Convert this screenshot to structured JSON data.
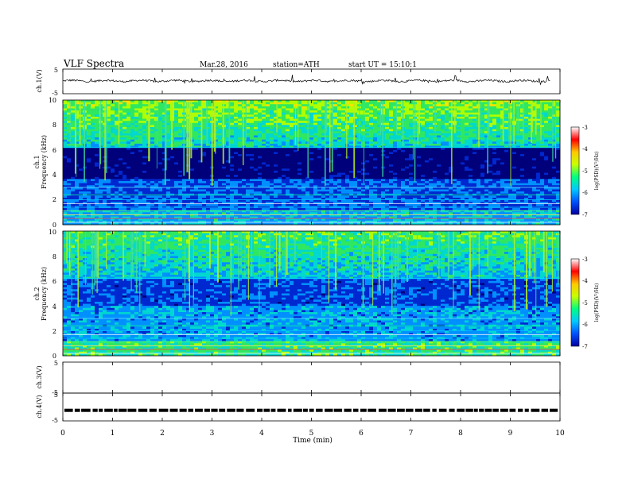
{
  "header": {
    "title": "VLF Spectra",
    "date": "Mar.28, 2016",
    "station": "station=ATH",
    "start_ut": "start UT =  15:10:1"
  },
  "chart_data": [
    {
      "type": "line",
      "panel": "ch1-waveform",
      "ylabel": "ch.1(V)",
      "ylim": [
        -5,
        5
      ],
      "yticks": [
        "5",
        "-5"
      ],
      "x_range_min": [
        0,
        9.8
      ],
      "baseline_level": 0.2
    },
    {
      "type": "heatmap",
      "panel": "ch1-spectrogram",
      "ylabel_channel": "ch.1",
      "ylabel": "Frequency (kHz)",
      "ylim": [
        0,
        10
      ],
      "yticks": [
        "0",
        "2",
        "4",
        "6",
        "8",
        "10"
      ],
      "colorbar": {
        "label": "log(PSD)(V²/Hz)",
        "range": [
          -7,
          -3
        ],
        "ticks": [
          "-3",
          "-4",
          "-5",
          "-6",
          "-7"
        ],
        "colors": [
          "#0000a0",
          "#0050ff",
          "#00c8ff",
          "#00ff80",
          "#c8ff00",
          "#ffc800",
          "#ff0000",
          "#ffffff"
        ]
      }
    },
    {
      "type": "heatmap",
      "panel": "ch2-spectrogram",
      "ylabel_channel": "ch.2",
      "ylabel": "Frequency (kHz)",
      "ylim": [
        0,
        10
      ],
      "yticks": [
        "0",
        "2",
        "4",
        "6",
        "8",
        "10"
      ],
      "colorbar": {
        "label": "log(PSD)(V²/Hz)",
        "range": [
          -7,
          -3
        ],
        "ticks": [
          "-3",
          "-4",
          "-5",
          "-6",
          "-7"
        ],
        "colors": [
          "#0000a0",
          "#0050ff",
          "#00c8ff",
          "#00ff80",
          "#c8ff00",
          "#ffc800",
          "#ff0000",
          "#ffffff"
        ]
      }
    },
    {
      "type": "line",
      "panel": "ch3-waveform",
      "ylabel": "ch.3(V)",
      "ylim": [
        -5,
        5
      ],
      "yticks": [
        "5",
        "-5"
      ]
    },
    {
      "type": "line",
      "panel": "ch4-waveform",
      "ylabel": "ch.4(V)",
      "ylim": [
        -5,
        5
      ],
      "yticks": [
        "5",
        "-5"
      ],
      "baseline_level": -1.2
    }
  ],
  "x_axis": {
    "label": "Time (min)",
    "xlim": [
      0,
      10
    ],
    "ticks": [
      "0",
      "1",
      "2",
      "3",
      "4",
      "5",
      "6",
      "7",
      "8",
      "9",
      "10"
    ]
  }
}
